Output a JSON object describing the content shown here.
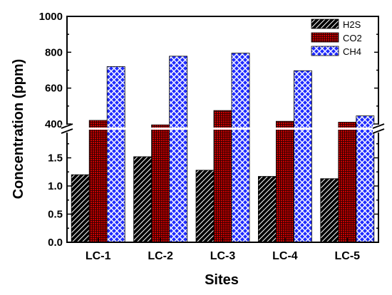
{
  "chart_data": {
    "type": "bar",
    "xlabel": "Sites",
    "ylabel": "Concentration (ppm)",
    "categories": [
      "LC-1",
      "LC-2",
      "LC-3",
      "LC-4",
      "LC-5"
    ],
    "series": [
      {
        "name": "H2S",
        "values": [
          1.2,
          1.52,
          1.28,
          1.17,
          1.13
        ],
        "color": "#000000",
        "pattern": "diagonal-hatch"
      },
      {
        "name": "CO2",
        "values": [
          420,
          395,
          475,
          415,
          410
        ],
        "color": "#cc0000",
        "pattern": "fine-grid"
      },
      {
        "name": "CH4",
        "values": [
          720,
          778,
          795,
          697,
          445
        ],
        "color": "#1f2bff",
        "pattern": "crosshatch"
      }
    ],
    "broken_axis": {
      "lower_range": [
        0,
        2.0
      ],
      "upper_range": [
        380,
        1000
      ]
    },
    "y_ticks_lower": [
      "0.0",
      "0.5",
      "1.0",
      "1.5"
    ],
    "y_ticks_upper": [
      "400",
      "600",
      "800",
      "1000"
    ],
    "legend_position": "top-right"
  }
}
